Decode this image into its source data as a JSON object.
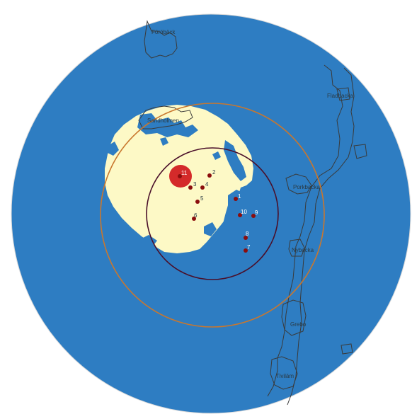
{
  "map": {
    "colors": {
      "not_visible": "#2e7dc2",
      "visible": "#fdf9c6",
      "border_lines": "#3a3a3a",
      "turbine_marker": "#8b0d0d",
      "highlight_blob": "#d42a2a",
      "inner_ring": "#4a0f2a",
      "outer_ring": "#c9772e"
    },
    "place_labels": {
      "top": "Föröbäck",
      "west": "Sandholmen",
      "ne": "Fladbacka",
      "east": "Porkbacka",
      "se_upper": "Nybacka",
      "se_lower": "Grebo",
      "south": "Tiviläm"
    },
    "turbines": [
      {
        "label": "1"
      },
      {
        "label": "2"
      },
      {
        "label": "3"
      },
      {
        "label": "4"
      },
      {
        "label": "5"
      },
      {
        "label": "6"
      },
      {
        "label": "7"
      },
      {
        "label": "8"
      },
      {
        "label": "9"
      },
      {
        "label": "10"
      },
      {
        "label": "11"
      }
    ]
  }
}
